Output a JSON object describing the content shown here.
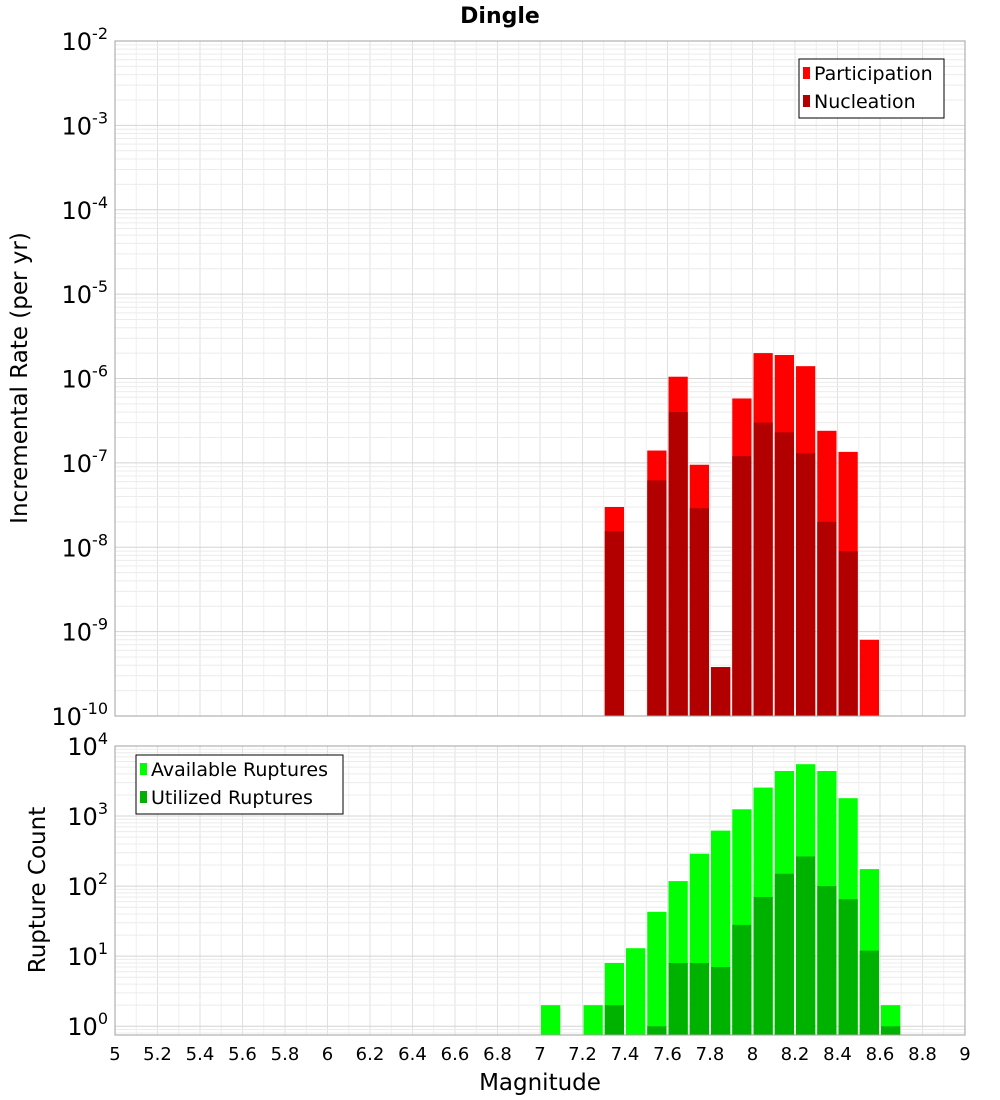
{
  "title": "Dingle",
  "xlabel": "Magnitude",
  "chart_data": [
    {
      "type": "bar",
      "title": "Dingle",
      "xlabel": "Magnitude",
      "ylabel": "Incremental Rate (per yr)",
      "yscale": "log",
      "xlim": [
        5,
        9
      ],
      "ylim": [
        1e-10,
        0.01
      ],
      "grid": true,
      "legend_position": "top-right",
      "x_ticks": [
        "5",
        "5.2",
        "5.4",
        "5.6",
        "5.8",
        "6",
        "6.2",
        "6.4",
        "6.6",
        "6.8",
        "7",
        "7.2",
        "7.4",
        "7.6",
        "7.8",
        "8",
        "8.2",
        "8.4",
        "8.6",
        "8.8",
        "9"
      ],
      "y_tick_exponents": [
        "-2",
        "-3",
        "-4",
        "-5",
        "-6",
        "-7",
        "-8",
        "-9",
        "-10"
      ],
      "series": [
        {
          "name": "Participation",
          "color": "#ff0000",
          "x": [
            7.35,
            7.55,
            7.65,
            7.75,
            7.85,
            7.95,
            8.05,
            8.15,
            8.25,
            8.35,
            8.45,
            8.55
          ],
          "values": [
            3e-08,
            1.4e-07,
            1.05e-06,
            9.5e-08,
            3.8e-10,
            5.8e-07,
            2e-06,
            1.9e-06,
            1.4e-06,
            2.4e-07,
            1.35e-07,
            8e-10
          ]
        },
        {
          "name": "Nucleation",
          "color": "#b20000",
          "x": [
            7.35,
            7.55,
            7.65,
            7.75,
            7.85,
            7.95,
            8.05,
            8.15,
            8.25,
            8.35,
            8.45
          ],
          "values": [
            1.55e-08,
            6.2e-08,
            4e-07,
            2.9e-08,
            3.8e-10,
            1.2e-07,
            3e-07,
            2.3e-07,
            1.3e-07,
            2e-08,
            9e-09
          ]
        }
      ]
    },
    {
      "type": "bar",
      "xlabel": "Magnitude",
      "ylabel": "Rupture Count",
      "yscale": "log",
      "xlim": [
        5,
        9
      ],
      "ylim": [
        0.75,
        10000
      ],
      "grid": true,
      "legend_position": "top-left",
      "x_ticks": [
        "5",
        "5.2",
        "5.4",
        "5.6",
        "5.8",
        "6",
        "6.2",
        "6.4",
        "6.6",
        "6.8",
        "7",
        "7.2",
        "7.4",
        "7.6",
        "7.8",
        "8",
        "8.2",
        "8.4",
        "8.6",
        "8.8",
        "9"
      ],
      "y_tick_exponents": [
        "4",
        "3",
        "2",
        "1",
        "0"
      ],
      "series": [
        {
          "name": "Available Ruptures",
          "color": "#00ff00",
          "x": [
            7.05,
            7.25,
            7.35,
            7.45,
            7.55,
            7.65,
            7.75,
            7.85,
            7.95,
            8.05,
            8.15,
            8.25,
            8.35,
            8.45,
            8.55,
            8.65
          ],
          "values": [
            2,
            2,
            8,
            13,
            43,
            118,
            290,
            620,
            1250,
            2550,
            4400,
            5500,
            4400,
            1800,
            175,
            2
          ]
        },
        {
          "name": "Utilized Ruptures",
          "color": "#00b200",
          "x": [
            7.35,
            7.55,
            7.65,
            7.75,
            7.85,
            7.95,
            8.05,
            8.15,
            8.25,
            8.35,
            8.45,
            8.55,
            8.65
          ],
          "values": [
            2,
            1,
            8,
            8,
            7,
            28,
            70,
            150,
            265,
            100,
            65,
            12,
            1
          ]
        }
      ]
    }
  ]
}
